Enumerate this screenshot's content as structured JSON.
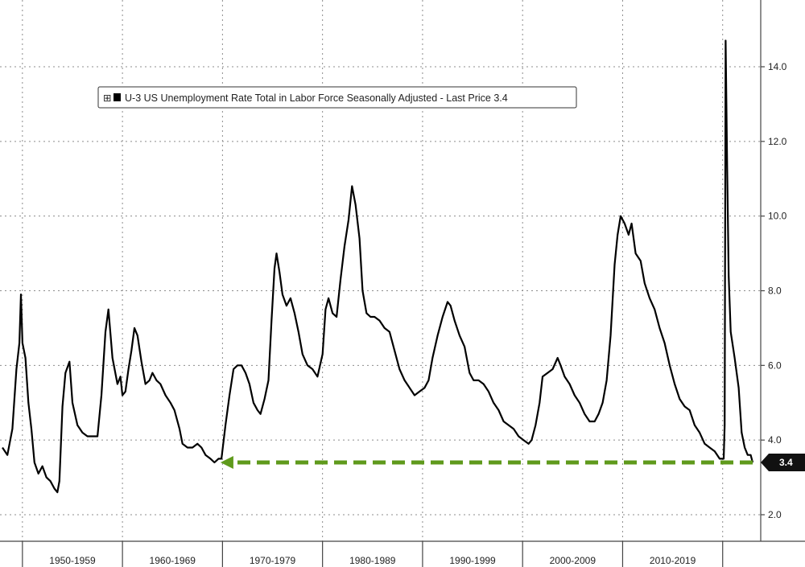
{
  "chart_data": {
    "type": "line",
    "title": "",
    "xlabel": "",
    "ylabel": "",
    "ylim": [
      1.5,
      15.5
    ],
    "xlim": [
      1948.0,
      2023.0
    ],
    "grid": true,
    "legend_position": "top-left",
    "y_ticks": [
      "2.0",
      "4.0",
      "6.0",
      "8.0",
      "10.0",
      "12.0",
      "14.0"
    ],
    "decade_labels": [
      "1950-1959",
      "1960-1969",
      "1970-1979",
      "1980-1989",
      "1990-1999",
      "2000-2009",
      "2010-2019"
    ],
    "legend": {
      "marker_glyph": "⊞",
      "text": "U-3 US Unemployment Rate Total in Labor Force Seasonally Adjusted - Last Price 3.4"
    },
    "last_value_label": "3.4",
    "colors": {
      "series": "#000000",
      "arrow": "#5f9a1c",
      "grid": "#8c8c8c",
      "last_badge": "#111111"
    },
    "series": [
      {
        "name": "U-3 US Unemployment Rate Total in Labor Force Seasonally Adjusted",
        "points": [
          [
            1948.0,
            3.8
          ],
          [
            1948.5,
            3.6
          ],
          [
            1949.0,
            4.3
          ],
          [
            1949.4,
            5.9
          ],
          [
            1949.7,
            6.6
          ],
          [
            1949.85,
            7.9
          ],
          [
            1950.0,
            6.6
          ],
          [
            1950.3,
            6.2
          ],
          [
            1950.6,
            5.0
          ],
          [
            1950.9,
            4.3
          ],
          [
            1951.2,
            3.4
          ],
          [
            1951.6,
            3.1
          ],
          [
            1952.0,
            3.3
          ],
          [
            1952.4,
            3.0
          ],
          [
            1952.8,
            2.9
          ],
          [
            1953.2,
            2.7
          ],
          [
            1953.5,
            2.6
          ],
          [
            1953.7,
            2.9
          ],
          [
            1954.0,
            4.9
          ],
          [
            1954.3,
            5.8
          ],
          [
            1954.7,
            6.1
          ],
          [
            1955.0,
            5.0
          ],
          [
            1955.5,
            4.4
          ],
          [
            1956.0,
            4.2
          ],
          [
            1956.5,
            4.1
          ],
          [
            1957.0,
            4.1
          ],
          [
            1957.5,
            4.1
          ],
          [
            1957.9,
            5.2
          ],
          [
            1958.3,
            6.9
          ],
          [
            1958.6,
            7.5
          ],
          [
            1959.0,
            6.2
          ],
          [
            1959.5,
            5.5
          ],
          [
            1959.8,
            5.7
          ],
          [
            1960.0,
            5.2
          ],
          [
            1960.3,
            5.3
          ],
          [
            1960.6,
            5.9
          ],
          [
            1960.9,
            6.4
          ],
          [
            1961.2,
            7.0
          ],
          [
            1961.5,
            6.8
          ],
          [
            1961.9,
            6.1
          ],
          [
            1962.3,
            5.5
          ],
          [
            1962.7,
            5.6
          ],
          [
            1963.0,
            5.8
          ],
          [
            1963.4,
            5.6
          ],
          [
            1963.8,
            5.5
          ],
          [
            1964.3,
            5.2
          ],
          [
            1964.8,
            5.0
          ],
          [
            1965.2,
            4.8
          ],
          [
            1965.7,
            4.3
          ],
          [
            1966.0,
            3.9
          ],
          [
            1966.5,
            3.8
          ],
          [
            1967.0,
            3.8
          ],
          [
            1967.5,
            3.9
          ],
          [
            1967.9,
            3.8
          ],
          [
            1968.3,
            3.6
          ],
          [
            1968.8,
            3.5
          ],
          [
            1969.2,
            3.4
          ],
          [
            1969.6,
            3.5
          ],
          [
            1969.9,
            3.5
          ],
          [
            1970.3,
            4.4
          ],
          [
            1970.7,
            5.2
          ],
          [
            1971.1,
            5.9
          ],
          [
            1971.5,
            6.0
          ],
          [
            1971.9,
            6.0
          ],
          [
            1972.3,
            5.8
          ],
          [
            1972.7,
            5.5
          ],
          [
            1973.1,
            5.0
          ],
          [
            1973.5,
            4.8
          ],
          [
            1973.8,
            4.7
          ],
          [
            1974.2,
            5.1
          ],
          [
            1974.6,
            5.6
          ],
          [
            1974.9,
            7.2
          ],
          [
            1975.2,
            8.6
          ],
          [
            1975.4,
            9.0
          ],
          [
            1975.7,
            8.5
          ],
          [
            1976.0,
            7.9
          ],
          [
            1976.4,
            7.6
          ],
          [
            1976.8,
            7.8
          ],
          [
            1977.2,
            7.4
          ],
          [
            1977.6,
            6.9
          ],
          [
            1978.0,
            6.3
          ],
          [
            1978.5,
            6.0
          ],
          [
            1979.0,
            5.9
          ],
          [
            1979.5,
            5.7
          ],
          [
            1980.0,
            6.3
          ],
          [
            1980.3,
            7.5
          ],
          [
            1980.6,
            7.8
          ],
          [
            1981.0,
            7.4
          ],
          [
            1981.4,
            7.3
          ],
          [
            1981.8,
            8.3
          ],
          [
            1982.2,
            9.2
          ],
          [
            1982.6,
            9.9
          ],
          [
            1982.95,
            10.8
          ],
          [
            1983.3,
            10.3
          ],
          [
            1983.7,
            9.4
          ],
          [
            1984.0,
            8.0
          ],
          [
            1984.4,
            7.4
          ],
          [
            1984.8,
            7.3
          ],
          [
            1985.2,
            7.3
          ],
          [
            1985.7,
            7.2
          ],
          [
            1986.2,
            7.0
          ],
          [
            1986.7,
            6.9
          ],
          [
            1987.2,
            6.4
          ],
          [
            1987.7,
            5.9
          ],
          [
            1988.2,
            5.6
          ],
          [
            1988.7,
            5.4
          ],
          [
            1989.2,
            5.2
          ],
          [
            1989.7,
            5.3
          ],
          [
            1990.2,
            5.4
          ],
          [
            1990.6,
            5.6
          ],
          [
            1991.0,
            6.2
          ],
          [
            1991.5,
            6.8
          ],
          [
            1992.0,
            7.3
          ],
          [
            1992.5,
            7.7
          ],
          [
            1992.8,
            7.6
          ],
          [
            1993.2,
            7.2
          ],
          [
            1993.7,
            6.8
          ],
          [
            1994.2,
            6.5
          ],
          [
            1994.7,
            5.8
          ],
          [
            1995.1,
            5.6
          ],
          [
            1995.6,
            5.6
          ],
          [
            1996.1,
            5.5
          ],
          [
            1996.6,
            5.3
          ],
          [
            1997.1,
            5.0
          ],
          [
            1997.6,
            4.8
          ],
          [
            1998.1,
            4.5
          ],
          [
            1998.6,
            4.4
          ],
          [
            1999.1,
            4.3
          ],
          [
            1999.6,
            4.1
          ],
          [
            2000.1,
            4.0
          ],
          [
            2000.6,
            3.9
          ],
          [
            2000.9,
            4.0
          ],
          [
            2001.3,
            4.4
          ],
          [
            2001.7,
            5.0
          ],
          [
            2002.0,
            5.7
          ],
          [
            2002.5,
            5.8
          ],
          [
            2003.0,
            5.9
          ],
          [
            2003.5,
            6.2
          ],
          [
            2003.8,
            6.0
          ],
          [
            2004.2,
            5.7
          ],
          [
            2004.7,
            5.5
          ],
          [
            2005.2,
            5.2
          ],
          [
            2005.7,
            5.0
          ],
          [
            2006.2,
            4.7
          ],
          [
            2006.7,
            4.5
          ],
          [
            2007.2,
            4.5
          ],
          [
            2007.6,
            4.7
          ],
          [
            2008.0,
            5.0
          ],
          [
            2008.4,
            5.6
          ],
          [
            2008.8,
            6.8
          ],
          [
            2009.2,
            8.7
          ],
          [
            2009.5,
            9.5
          ],
          [
            2009.8,
            10.0
          ],
          [
            2010.2,
            9.8
          ],
          [
            2010.6,
            9.5
          ],
          [
            2010.9,
            9.8
          ],
          [
            2011.3,
            9.0
          ],
          [
            2011.8,
            8.8
          ],
          [
            2012.2,
            8.2
          ],
          [
            2012.7,
            7.8
          ],
          [
            2013.2,
            7.5
          ],
          [
            2013.7,
            7.0
          ],
          [
            2014.2,
            6.6
          ],
          [
            2014.7,
            6.0
          ],
          [
            2015.2,
            5.5
          ],
          [
            2015.7,
            5.1
          ],
          [
            2016.2,
            4.9
          ],
          [
            2016.7,
            4.8
          ],
          [
            2017.2,
            4.4
          ],
          [
            2017.7,
            4.2
          ],
          [
            2018.2,
            3.9
          ],
          [
            2018.7,
            3.8
          ],
          [
            2019.2,
            3.7
          ],
          [
            2019.7,
            3.5
          ],
          [
            2020.1,
            3.5
          ],
          [
            2020.2,
            4.4
          ],
          [
            2020.3,
            14.7
          ],
          [
            2020.45,
            11.3
          ],
          [
            2020.6,
            8.4
          ],
          [
            2020.8,
            6.9
          ],
          [
            2021.2,
            6.2
          ],
          [
            2021.6,
            5.4
          ],
          [
            2021.9,
            4.2
          ],
          [
            2022.2,
            3.8
          ],
          [
            2022.5,
            3.6
          ],
          [
            2022.8,
            3.6
          ],
          [
            2023.0,
            3.4
          ]
        ]
      }
    ],
    "annotation_arrow": {
      "from": [
        2023.0,
        3.4
      ],
      "to": [
        1969.8,
        3.4
      ]
    }
  }
}
